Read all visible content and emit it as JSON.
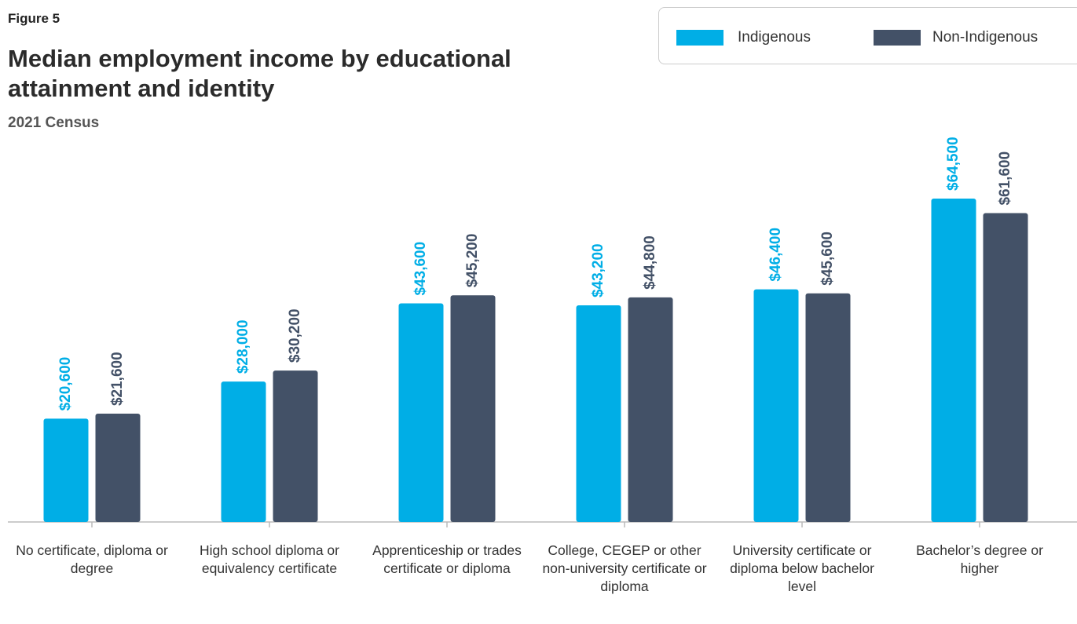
{
  "chart_data": {
    "type": "bar",
    "figure_label": "Figure 5",
    "title": "Median employment income by educational attainment and identity",
    "subtitle": "2021 Census",
    "categories": [
      "No certificate, diploma or degree",
      "High school diploma or equivalency certificate",
      "Apprenticeship or trades certificate or diploma",
      "College, CEGEP or other non-university certificate or diploma",
      "University certificate or diploma below bachelor level",
      "Bachelor’s degree or higher"
    ],
    "series": [
      {
        "name": "Indigenous",
        "color": "#00aee6",
        "values": [
          20600,
          28000,
          43600,
          43200,
          46400,
          64500
        ],
        "value_labels": [
          "$20,600",
          "$28,000",
          "$43,600",
          "$43,200",
          "$46,400",
          "$64,500"
        ]
      },
      {
        "name": "Non-Indigenous",
        "color": "#435167",
        "values": [
          21600,
          30200,
          45200,
          44800,
          45600,
          61600
        ],
        "value_labels": [
          "$21,600",
          "$30,200",
          "$45,200",
          "$44,800",
          "$45,600",
          "$61,600"
        ]
      }
    ],
    "legend": "top-right"
  }
}
